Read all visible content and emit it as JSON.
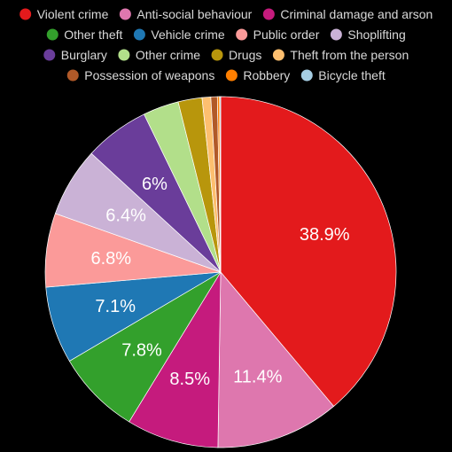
{
  "chart_data": {
    "type": "pie",
    "title": "",
    "legend_position": "top",
    "slices": [
      {
        "label": "Violent crime",
        "value": 38.9,
        "color": "#e31a1c",
        "value_label": "38.9%"
      },
      {
        "label": "Anti-social behaviour",
        "value": 11.4,
        "color": "#de77ae",
        "value_label": "11.4%"
      },
      {
        "label": "Criminal damage and arson",
        "value": 8.5,
        "color": "#c51b7d",
        "value_label": "8.5%"
      },
      {
        "label": "Other theft",
        "value": 7.8,
        "color": "#33a02c",
        "value_label": "7.8%"
      },
      {
        "label": "Vehicle crime",
        "value": 7.1,
        "color": "#1f78b4",
        "value_label": "7.1%"
      },
      {
        "label": "Public order",
        "value": 6.8,
        "color": "#fb9a99",
        "value_label": "6.8%"
      },
      {
        "label": "Shoplifting",
        "value": 6.4,
        "color": "#cab2d6",
        "value_label": "6.4%"
      },
      {
        "label": "Burglary",
        "value": 6.0,
        "color": "#6a3d9a",
        "value_label": "6%"
      },
      {
        "label": "Other crime",
        "value": 3.3,
        "color": "#b2df8a",
        "value_label": ""
      },
      {
        "label": "Drugs",
        "value": 2.2,
        "color": "#b8960c",
        "value_label": ""
      },
      {
        "label": "Theft from the person",
        "value": 0.8,
        "color": "#fdbf6f",
        "value_label": ""
      },
      {
        "label": "Possession of weapons",
        "value": 0.6,
        "color": "#b15928",
        "value_label": ""
      },
      {
        "label": "Robbery",
        "value": 0.2,
        "color": "#ff7f00",
        "value_label": ""
      },
      {
        "label": "Bicycle theft",
        "value": 0.1,
        "color": "#a6cee3",
        "value_label": ""
      }
    ]
  }
}
